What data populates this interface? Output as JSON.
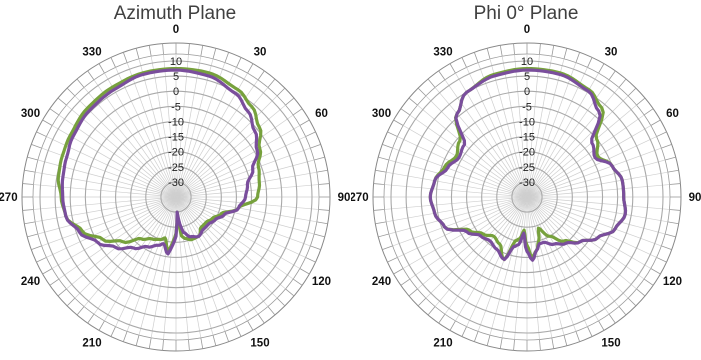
{
  "chart_data": [
    {
      "type": "polar",
      "title": "Azimuth Plane",
      "radial_ticks": [
        "10",
        "5",
        "0",
        "-5",
        "-10",
        "-15",
        "-20",
        "-25",
        "-30"
      ],
      "radial_range": [
        -35,
        10
      ],
      "angle_ticks": [
        "0",
        "30",
        "60",
        "90",
        "120",
        "150",
        "180",
        "210",
        "240",
        "270",
        "300",
        "330"
      ],
      "angle_direction": "clockwise",
      "angle_zero": "top",
      "grid": true,
      "series": [
        {
          "color": "#77a13d",
          "angles": [
            0,
            15,
            30,
            40,
            50,
            60,
            70,
            80,
            90,
            100,
            110,
            120,
            130,
            140,
            150,
            160,
            168,
            172,
            176,
            180,
            184,
            188,
            195,
            200,
            210,
            220,
            230,
            240,
            250,
            260,
            270,
            280,
            290,
            300,
            315,
            330,
            345,
            360
          ],
          "values": [
            7.5,
            7.5,
            6,
            4,
            1,
            -3,
            -6,
            -7,
            -8,
            -14,
            -19,
            -21,
            -22,
            -22,
            -20,
            -20,
            -21,
            -22,
            -30,
            -23,
            -20,
            -17,
            -21,
            -20,
            -19,
            -17,
            -12,
            -7,
            -2,
            2,
            3,
            4.5,
            5,
            5.5,
            6.5,
            7,
            7.5,
            7.5
          ]
        },
        {
          "color": "#7a4e9c",
          "angles": [
            0,
            15,
            30,
            40,
            50,
            60,
            70,
            80,
            90,
            100,
            110,
            120,
            130,
            140,
            150,
            160,
            168,
            172,
            176,
            180,
            184,
            188,
            195,
            200,
            210,
            220,
            230,
            240,
            250,
            260,
            270,
            280,
            290,
            300,
            315,
            330,
            345,
            360
          ],
          "values": [
            7,
            6.5,
            4.5,
            2,
            -1,
            -4,
            -8,
            -11,
            -12,
            -14,
            -18,
            -20,
            -21,
            -21,
            -20,
            -21,
            -23,
            -26,
            -30,
            -22,
            -19,
            -16,
            -19,
            -18,
            -16,
            -13,
            -9,
            -5,
            -1,
            2,
            2.5,
            3,
            3.5,
            4.5,
            5.5,
            6,
            7,
            7
          ]
        }
      ]
    },
    {
      "type": "polar",
      "title": "Phi 0° Plane",
      "radial_ticks": [
        "10",
        "5",
        "0",
        "-5",
        "-10",
        "-15",
        "-20",
        "-25",
        "-30"
      ],
      "radial_range": [
        -35,
        10
      ],
      "angle_ticks": [
        "0",
        "30",
        "60",
        "90",
        "120",
        "150",
        "180",
        "210",
        "240",
        "270",
        "300",
        "330"
      ],
      "angle_direction": "clockwise",
      "angle_zero": "top",
      "grid": true,
      "series": [
        {
          "color": "#77a13d",
          "angles": [
            0,
            15,
            30,
            40,
            50,
            60,
            70,
            80,
            90,
            100,
            110,
            120,
            130,
            140,
            150,
            160,
            165,
            170,
            175,
            180,
            185,
            190,
            195,
            200,
            210,
            220,
            230,
            240,
            250,
            260,
            270,
            280,
            290,
            300,
            310,
            320,
            330,
            345,
            360
          ],
          "values": [
            7.5,
            7.5,
            6,
            3.5,
            -5,
            -8,
            -5,
            -3,
            -3,
            -2,
            -4,
            -8,
            -12,
            -16,
            -20,
            -24,
            -20,
            -17,
            -15,
            -19,
            -24,
            -21,
            -20,
            -13,
            -17,
            -18,
            -16,
            -13,
            -6,
            -4,
            -3,
            -4,
            -6,
            -8,
            -6,
            1,
            5,
            7,
            7.5
          ]
        },
        {
          "color": "#7a4e9c",
          "angles": [
            0,
            15,
            30,
            40,
            50,
            60,
            70,
            80,
            90,
            100,
            110,
            120,
            130,
            140,
            150,
            160,
            165,
            170,
            175,
            180,
            185,
            190,
            195,
            200,
            210,
            220,
            230,
            240,
            250,
            260,
            270,
            280,
            290,
            300,
            310,
            320,
            330,
            345,
            360
          ],
          "values": [
            7,
            7,
            5.5,
            2,
            -7,
            -9,
            -5,
            -3,
            -3,
            -2,
            -4,
            -8,
            -12,
            -15,
            -17,
            -19,
            -19,
            -17,
            -14,
            -17,
            -23,
            -19,
            -18,
            -13,
            -15,
            -16,
            -15,
            -12,
            -6,
            -4,
            -3,
            -4,
            -7,
            -9,
            -8,
            1,
            5,
            6.5,
            7
          ]
        }
      ]
    }
  ]
}
